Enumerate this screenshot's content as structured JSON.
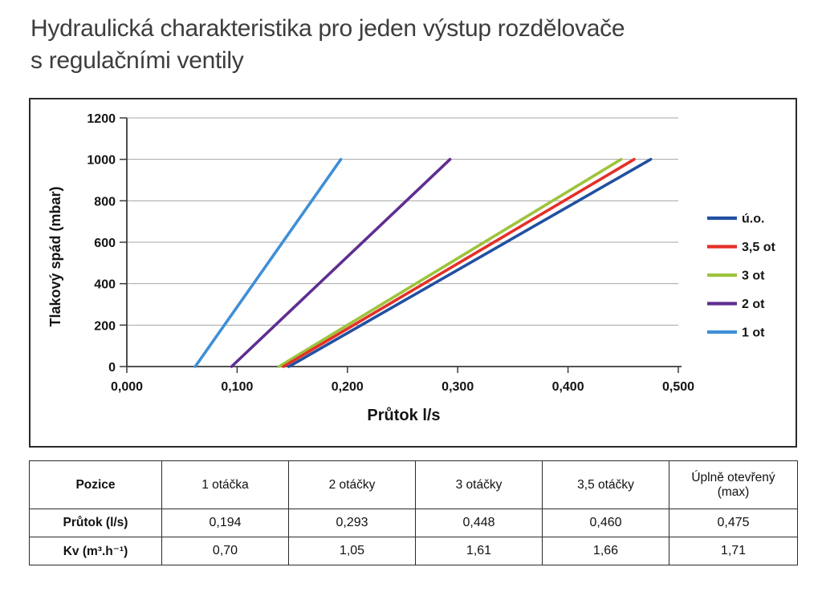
{
  "header": {
    "title_line1": "Hydraulická charakteristika pro jeden výstup rozdělovače",
    "title_line2": "s regulačními ventily"
  },
  "chart_data": {
    "type": "line",
    "title": "",
    "xlabel": "Průtok l/s",
    "ylabel": "Tlakový spád (mbar)",
    "xlim": [
      0,
      0.5
    ],
    "ylim": [
      0,
      1200
    ],
    "x_ticks": [
      "0,000",
      "0,100",
      "0,200",
      "0,300",
      "0,400",
      "0,500"
    ],
    "y_ticks": [
      "0",
      "200",
      "400",
      "600",
      "800",
      "1000",
      "1200"
    ],
    "grid": "horizontal",
    "legend_position": "right",
    "series": [
      {
        "name": "ú.o.",
        "color": "#2150a0",
        "points": [
          [
            0.147,
            0
          ],
          [
            0.475,
            1000
          ]
        ]
      },
      {
        "name": "3,5 ot",
        "color": "#e43028",
        "points": [
          [
            0.142,
            0
          ],
          [
            0.46,
            1000
          ]
        ]
      },
      {
        "name": "3 ot",
        "color": "#9dc43c",
        "points": [
          [
            0.138,
            0
          ],
          [
            0.448,
            1000
          ]
        ]
      },
      {
        "name": "2 ot",
        "color": "#5f2e91",
        "points": [
          [
            0.095,
            0
          ],
          [
            0.293,
            1000
          ]
        ]
      },
      {
        "name": "1 ot",
        "color": "#3f8fd6",
        "points": [
          [
            0.062,
            0
          ],
          [
            0.194,
            1000
          ]
        ]
      }
    ]
  },
  "table": {
    "header": [
      "Pozice",
      "1 otáčka",
      "2 otáčky",
      "3 otáčky",
      "3,5 otáčky",
      "Úplně otevřený\n(max)"
    ],
    "rows": [
      {
        "label": "Průtok (l/s)",
        "values": [
          "0,194",
          "0,293",
          "0,448",
          "0,460",
          "0,475"
        ]
      },
      {
        "label": "Kv (m³.h⁻¹)",
        "values": [
          "0,70",
          "1,05",
          "1,61",
          "1,66",
          "1,71"
        ]
      }
    ]
  }
}
